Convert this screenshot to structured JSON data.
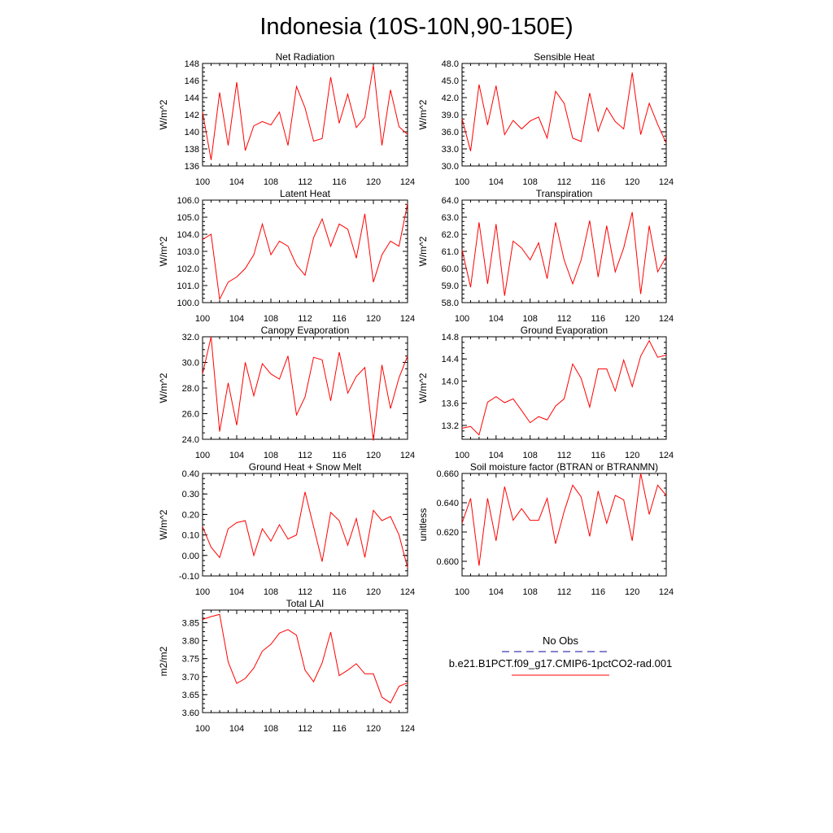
{
  "figure": {
    "title": "Indonesia (10S-10N,90-150E)",
    "line_color": "#ff0000",
    "obs_color": "#3b3bb5"
  },
  "legend": {
    "obs_label": "No Obs",
    "model_label": "b.e21.B1PCT.f09_g17.CMIP6-1pctCO2-rad.001",
    "obs_style": "dashed",
    "model_style": "solid"
  },
  "chart_data": [
    {
      "type": "line",
      "title": "Net Radiation",
      "ylabel": "W/m^2",
      "xlim": [
        100,
        124
      ],
      "xticks": [
        "100",
        "104",
        "108",
        "112",
        "116",
        "120",
        "124"
      ],
      "ylim": [
        136,
        148
      ],
      "yticks": [
        "136",
        "138",
        "140",
        "142",
        "144",
        "146",
        "148"
      ],
      "x": [
        100,
        101,
        102,
        103,
        104,
        105,
        106,
        107,
        108,
        109,
        110,
        111,
        112,
        113,
        114,
        115,
        116,
        117,
        118,
        119,
        120,
        121,
        122,
        123,
        124
      ],
      "y": [
        142.3,
        136.7,
        144.6,
        138.4,
        145.8,
        137.8,
        140.7,
        141.2,
        140.8,
        142.3,
        138.4,
        145.3,
        142.8,
        138.9,
        139.2,
        146.4,
        141.0,
        144.4,
        140.5,
        141.7,
        147.8,
        138.4,
        144.9,
        140.6,
        139.7
      ]
    },
    {
      "type": "line",
      "title": "Sensible Heat",
      "ylabel": "W/m^2",
      "xlim": [
        100,
        124
      ],
      "xticks": [
        "100",
        "104",
        "108",
        "112",
        "116",
        "120",
        "124"
      ],
      "ylim": [
        30,
        48
      ],
      "yticks": [
        "30.0",
        "33.0",
        "36.0",
        "39.0",
        "42.0",
        "45.0",
        "48.0"
      ],
      "x": [
        100,
        101,
        102,
        103,
        104,
        105,
        106,
        107,
        108,
        109,
        110,
        111,
        112,
        113,
        114,
        115,
        116,
        117,
        118,
        119,
        120,
        121,
        122,
        123,
        124
      ],
      "y": [
        38.3,
        32.6,
        44.3,
        37.2,
        44.1,
        35.5,
        38.0,
        36.5,
        37.9,
        38.6,
        34.9,
        43.1,
        41.0,
        34.9,
        34.3,
        42.8,
        36.1,
        40.2,
        37.8,
        36.5,
        46.4,
        35.5,
        41.0,
        37.3,
        34.0
      ]
    },
    {
      "type": "line",
      "title": "Latent Heat",
      "ylabel": "W/m^2",
      "xlim": [
        100,
        124
      ],
      "xticks": [
        "100",
        "104",
        "108",
        "112",
        "116",
        "120",
        "124"
      ],
      "ylim": [
        100,
        106
      ],
      "yticks": [
        "100.0",
        "101.0",
        "102.0",
        "103.0",
        "104.0",
        "105.0",
        "106.0"
      ],
      "x": [
        100,
        101,
        102,
        103,
        104,
        105,
        106,
        107,
        108,
        109,
        110,
        111,
        112,
        113,
        114,
        115,
        116,
        117,
        118,
        119,
        120,
        121,
        122,
        123,
        124
      ],
      "y": [
        103.7,
        104.0,
        100.2,
        101.2,
        101.5,
        102.0,
        102.8,
        104.6,
        102.8,
        103.6,
        103.3,
        102.2,
        101.6,
        103.8,
        104.9,
        103.3,
        104.6,
        104.3,
        102.6,
        105.2,
        101.2,
        102.8,
        103.6,
        103.3,
        105.8
      ]
    },
    {
      "type": "line",
      "title": "Transpiration",
      "ylabel": "W/m^2",
      "xlim": [
        100,
        124
      ],
      "xticks": [
        "100",
        "104",
        "108",
        "112",
        "116",
        "120",
        "124"
      ],
      "ylim": [
        58,
        64
      ],
      "yticks": [
        "58.0",
        "59.0",
        "60.0",
        "61.0",
        "62.0",
        "63.0",
        "64.0"
      ],
      "x": [
        100,
        101,
        102,
        103,
        104,
        105,
        106,
        107,
        108,
        109,
        110,
        111,
        112,
        113,
        114,
        115,
        116,
        117,
        118,
        119,
        120,
        121,
        122,
        123,
        124
      ],
      "y": [
        61.1,
        58.9,
        62.7,
        59.1,
        62.6,
        58.4,
        61.6,
        61.2,
        60.5,
        61.5,
        59.4,
        62.7,
        60.5,
        59.1,
        60.5,
        62.8,
        59.5,
        62.5,
        59.8,
        61.2,
        63.3,
        58.5,
        62.5,
        59.8,
        60.7
      ]
    },
    {
      "type": "line",
      "title": "Canopy Evaporation",
      "ylabel": "W/m^2",
      "xlim": [
        100,
        124
      ],
      "xticks": [
        "100",
        "104",
        "108",
        "112",
        "116",
        "120",
        "124"
      ],
      "ylim": [
        24,
        32
      ],
      "yticks": [
        "24.0",
        "26.0",
        "28.0",
        "30.0",
        "32.0"
      ],
      "x": [
        100,
        101,
        102,
        103,
        104,
        105,
        106,
        107,
        108,
        109,
        110,
        111,
        112,
        113,
        114,
        115,
        116,
        117,
        118,
        119,
        120,
        121,
        122,
        123,
        124
      ],
      "y": [
        29.1,
        32.0,
        24.6,
        28.4,
        25.1,
        30.0,
        27.4,
        29.9,
        29.1,
        28.7,
        30.5,
        25.9,
        27.3,
        30.4,
        30.2,
        27.0,
        30.8,
        27.6,
        28.9,
        29.6,
        23.9,
        29.8,
        26.4,
        28.8,
        30.5
      ]
    },
    {
      "type": "line",
      "title": "Ground Evaporation",
      "ylabel": "W/m^2",
      "xlim": [
        100,
        124
      ],
      "xticks": [
        "100",
        "104",
        "108",
        "112",
        "116",
        "120",
        "124"
      ],
      "ylim": [
        12.95,
        14.8
      ],
      "yticks": [
        "13.2",
        "13.6",
        "14.0",
        "14.4",
        "14.8"
      ],
      "x": [
        100,
        101,
        102,
        103,
        104,
        105,
        106,
        107,
        108,
        109,
        110,
        111,
        112,
        113,
        114,
        115,
        116,
        117,
        118,
        119,
        120,
        121,
        122,
        123,
        124
      ],
      "y": [
        13.15,
        13.18,
        13.03,
        13.62,
        13.72,
        13.61,
        13.68,
        13.47,
        13.25,
        13.36,
        13.3,
        13.55,
        13.68,
        14.31,
        14.05,
        13.53,
        14.22,
        14.22,
        13.82,
        14.38,
        13.9,
        14.45,
        14.73,
        14.43,
        14.47
      ]
    },
    {
      "type": "line",
      "title": "Ground Heat + Snow Melt",
      "ylabel": "W/m^2",
      "xlim": [
        100,
        124
      ],
      "xticks": [
        "100",
        "104",
        "108",
        "112",
        "116",
        "120",
        "124"
      ],
      "ylim": [
        -0.1,
        0.4
      ],
      "yticks": [
        "-0.10",
        "0.00",
        "0.10",
        "0.20",
        "0.30",
        "0.40"
      ],
      "x": [
        100,
        101,
        102,
        103,
        104,
        105,
        106,
        107,
        108,
        109,
        110,
        111,
        112,
        113,
        114,
        115,
        116,
        117,
        118,
        119,
        120,
        121,
        122,
        123,
        124
      ],
      "y": [
        0.14,
        0.04,
        -0.01,
        0.13,
        0.16,
        0.17,
        0.0,
        0.13,
        0.07,
        0.15,
        0.08,
        0.1,
        0.31,
        0.14,
        -0.03,
        0.21,
        0.17,
        0.05,
        0.18,
        -0.01,
        0.22,
        0.17,
        0.19,
        0.1,
        -0.06
      ]
    },
    {
      "type": "line",
      "title": "Soil moisture factor (BTRAN or BTRANMN)",
      "ylabel": "unitless",
      "xlim": [
        100,
        124
      ],
      "xticks": [
        "100",
        "104",
        "108",
        "112",
        "116",
        "120",
        "124"
      ],
      "ylim": [
        0.59,
        0.66
      ],
      "yticks": [
        "0.600",
        "0.620",
        "0.640",
        "0.660"
      ],
      "x": [
        100,
        101,
        102,
        103,
        104,
        105,
        106,
        107,
        108,
        109,
        110,
        111,
        112,
        113,
        114,
        115,
        116,
        117,
        118,
        119,
        120,
        121,
        122,
        123,
        124
      ],
      "y": [
        0.626,
        0.643,
        0.597,
        0.643,
        0.614,
        0.651,
        0.628,
        0.636,
        0.628,
        0.628,
        0.643,
        0.612,
        0.634,
        0.652,
        0.644,
        0.617,
        0.648,
        0.626,
        0.645,
        0.642,
        0.614,
        0.66,
        0.632,
        0.652,
        0.645
      ]
    },
    {
      "type": "line",
      "title": "Total LAI",
      "ylabel": "m2/m2",
      "xlim": [
        100,
        124
      ],
      "xticks": [
        "100",
        "104",
        "108",
        "112",
        "116",
        "120",
        "124"
      ],
      "ylim": [
        3.6,
        3.885
      ],
      "yticks": [
        "3.60",
        "3.65",
        "3.70",
        "3.75",
        "3.80",
        "3.85"
      ],
      "x": [
        100,
        101,
        102,
        103,
        104,
        105,
        106,
        107,
        108,
        109,
        110,
        111,
        112,
        113,
        114,
        115,
        116,
        117,
        118,
        119,
        120,
        121,
        122,
        123,
        124
      ],
      "y": [
        3.859,
        3.867,
        3.873,
        3.741,
        3.681,
        3.695,
        3.724,
        3.771,
        3.79,
        3.821,
        3.831,
        3.815,
        3.718,
        3.686,
        3.738,
        3.824,
        3.703,
        3.718,
        3.736,
        3.708,
        3.708,
        3.643,
        3.627,
        3.673,
        3.683
      ]
    }
  ]
}
